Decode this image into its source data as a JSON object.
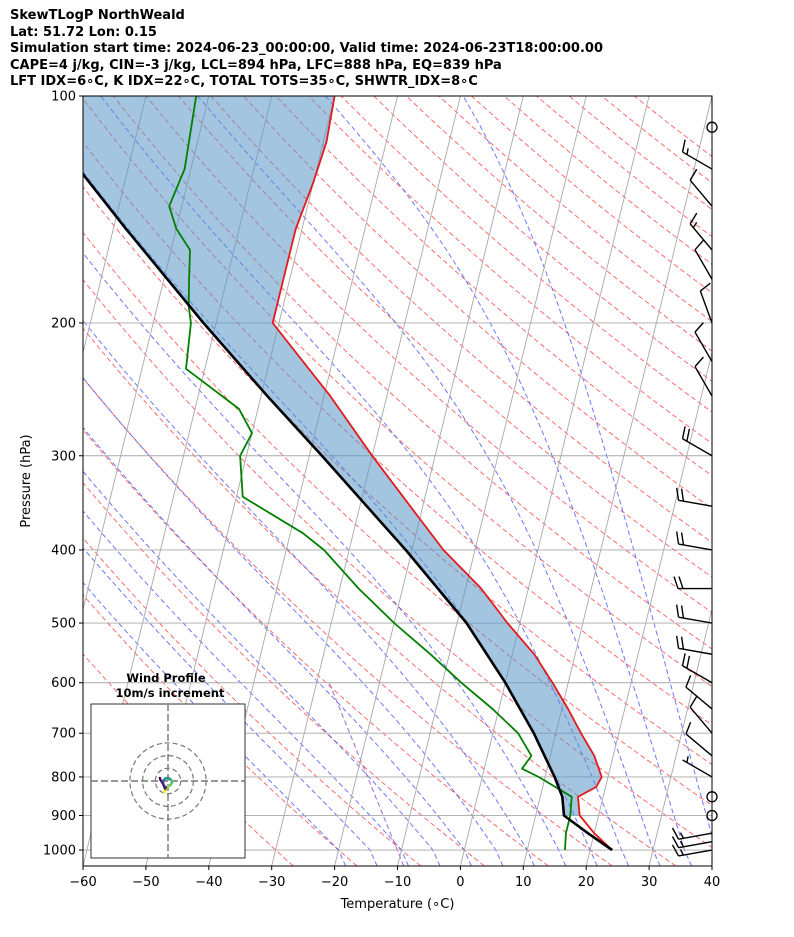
{
  "header": {
    "line1": "SkewTLogP NorthWeald",
    "line2": "Lat: 51.72   Lon: 0.15",
    "line3": "Simulation start time: 2024-06-23_00:00:00, Valid time: 2024-06-23T18:00:00.00",
    "line4": "CAPE=4 j/kg, CIN=-3 j/kg, LCL=894 hPa, LFC=888 hPa, EQ=839 hPa",
    "line5": "LFT IDX=6∘C, K IDX=22∘C, TOTAL TOTS=35∘C, SHWTR_IDX=8∘C"
  },
  "chart_data": {
    "type": "skewt",
    "title": "SkewTLogP NorthWeald",
    "xlabel": "Temperature (∘C)",
    "ylabel": "Pressure (hPa)",
    "xlim": [
      -60,
      40
    ],
    "ylim": [
      1050,
      100
    ],
    "x_ticks": [
      -60,
      -50,
      -40,
      -30,
      -20,
      -10,
      0,
      10,
      20,
      30,
      40
    ],
    "y_ticks": [
      1000,
      900,
      800,
      700,
      600,
      500,
      400,
      300,
      200,
      100
    ],
    "series": [
      {
        "name": "Temperature",
        "color": "#e31a1c",
        "pressure": [
          1000,
          950,
          900,
          850,
          825,
          800,
          750,
          700,
          650,
          600,
          550,
          500,
          450,
          400,
          350,
          300,
          250,
          200,
          180,
          150,
          130,
          115,
          100
        ],
        "values": [
          23.5,
          20,
          17,
          16,
          18.5,
          19,
          17,
          14,
          11,
          7.5,
          3.5,
          -2,
          -7.5,
          -15,
          -22,
          -30,
          -39,
          -51,
          -51,
          -51,
          -50,
          -49.5,
          -50
        ]
      },
      {
        "name": "Dewpoint",
        "color": "#008000",
        "pressure": [
          1000,
          950,
          900,
          850,
          800,
          780,
          750,
          700,
          650,
          600,
          550,
          500,
          450,
          400,
          380,
          340,
          300,
          280,
          260,
          230,
          200,
          190,
          175,
          160,
          150,
          140,
          125,
          100
        ],
        "values": [
          16,
          15.5,
          15.5,
          15,
          9,
          6,
          7,
          4,
          -1,
          -7,
          -13,
          -20,
          -27,
          -34,
          -38,
          -49,
          -51,
          -50,
          -53,
          -63,
          -64,
          -65,
          -66,
          -67,
          -70,
          -72,
          -71,
          -72
        ]
      },
      {
        "name": "Parcel profile",
        "color": "#000000",
        "pressure": [
          1000,
          950,
          900,
          850,
          800,
          700,
          600,
          500,
          400,
          300,
          250,
          200,
          150,
          120,
          100
        ],
        "values": [
          23.5,
          19,
          14.5,
          13.5,
          11.5,
          6.5,
          0,
          -8.5,
          -21,
          -38,
          -49,
          -62,
          -78,
          -90,
          -100
        ]
      }
    ],
    "shaded_region": "CAPE/CIN between temperature and parcel profile",
    "wind_barbs": {
      "pressure": [
        1000,
        975,
        950,
        900,
        850,
        800,
        750,
        700,
        650,
        600,
        550,
        500,
        450,
        400,
        350,
        300,
        250,
        225,
        200,
        175,
        160,
        140,
        125,
        110
      ],
      "speed_kt": [
        15,
        15,
        15,
        0,
        0,
        5,
        10,
        10,
        10,
        20,
        20,
        20,
        20,
        20,
        20,
        20,
        10,
        10,
        10,
        10,
        15,
        10,
        15,
        0
      ],
      "direction_deg": [
        260,
        260,
        260,
        0,
        0,
        300,
        310,
        320,
        310,
        300,
        280,
        280,
        270,
        280,
        280,
        300,
        330,
        330,
        340,
        330,
        320,
        320,
        300,
        0
      ]
    },
    "hodograph": {
      "title": "Wind Profile",
      "subtitle": "10m/s increment",
      "rings_ms": [
        10,
        20,
        30
      ],
      "u": [
        -1.5,
        -1.2,
        -0.8,
        -0.5,
        0.2,
        1.1,
        1.6,
        1.2,
        0.5,
        -0.3,
        -1.0,
        -1.5,
        -1.8,
        -2.0,
        -1.5,
        -0.8,
        -1.2,
        -2.0,
        -3.0,
        -3.2
      ],
      "v": [
        -4.5,
        -4.0,
        -3.5,
        -2.5,
        -2.2,
        -1.5,
        -0.5,
        0.5,
        1.0,
        1.2,
        1.0,
        0.5,
        0.0,
        -1.0,
        -2.0,
        -2.5,
        -3.0,
        -1.0,
        0.5,
        1.2
      ]
    }
  }
}
